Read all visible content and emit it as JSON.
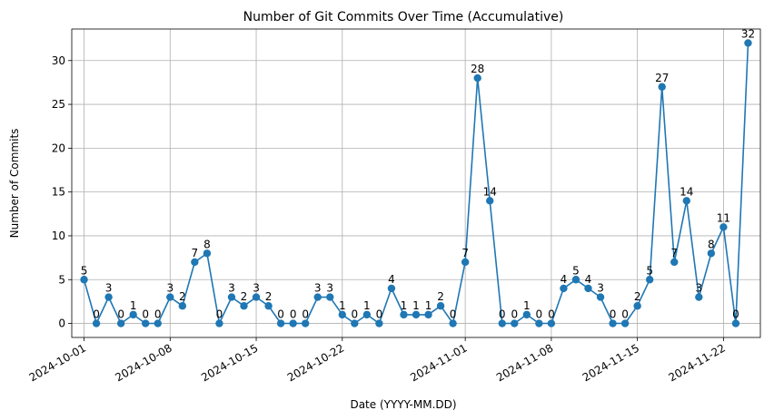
{
  "chart_data": {
    "type": "line",
    "title": "Number of Git Commits Over Time (Accumulative)",
    "xlabel": "Date (YYYY-MM.DD)",
    "ylabel": "Number of Commits",
    "x": [
      "2024-10-01",
      "2024-10-02",
      "2024-10-03",
      "2024-10-04",
      "2024-10-05",
      "2024-10-06",
      "2024-10-07",
      "2024-10-08",
      "2024-10-09",
      "2024-10-10",
      "2024-10-11",
      "2024-10-12",
      "2024-10-13",
      "2024-10-14",
      "2024-10-15",
      "2024-10-16",
      "2024-10-17",
      "2024-10-18",
      "2024-10-19",
      "2024-10-20",
      "2024-10-21",
      "2024-10-22",
      "2024-10-23",
      "2024-10-24",
      "2024-10-25",
      "2024-10-26",
      "2024-10-27",
      "2024-10-28",
      "2024-10-29",
      "2024-10-30",
      "2024-10-31",
      "2024-11-01",
      "2024-11-02",
      "2024-11-03",
      "2024-11-04",
      "2024-11-05",
      "2024-11-06",
      "2024-11-07",
      "2024-11-08",
      "2024-11-09",
      "2024-11-10",
      "2024-11-11",
      "2024-11-12",
      "2024-11-13",
      "2024-11-14",
      "2024-11-15",
      "2024-11-16",
      "2024-11-17",
      "2024-11-18",
      "2024-11-19",
      "2024-11-20",
      "2024-11-21",
      "2024-11-22",
      "2024-11-23",
      "2024-11-24"
    ],
    "series": [
      {
        "values": [
          5,
          0,
          3,
          0,
          1,
          0,
          0,
          3,
          2,
          7,
          8,
          0,
          3,
          2,
          3,
          2,
          0,
          0,
          0,
          3,
          3,
          1,
          0,
          1,
          0,
          4,
          1,
          1,
          1,
          2,
          0,
          7,
          28,
          14,
          0,
          0,
          1,
          0,
          0,
          4,
          5,
          4,
          3,
          0,
          0,
          2,
          5,
          27,
          7,
          14,
          3,
          8,
          11,
          0,
          32
        ],
        "color": "#1f77b4"
      }
    ],
    "xticks": [
      "2024-10-01",
      "2024-10-08",
      "2024-10-15",
      "2024-10-22",
      "2024-11-01",
      "2024-11-08",
      "2024-11-15",
      "2024-11-22"
    ],
    "yticks": [
      0,
      5,
      10,
      15,
      20,
      25,
      30
    ],
    "xlim": [
      "2024-09-30",
      "2024-11-25"
    ],
    "ylim": [
      -1.6,
      33.6
    ],
    "grid": true,
    "data_labels": true
  }
}
